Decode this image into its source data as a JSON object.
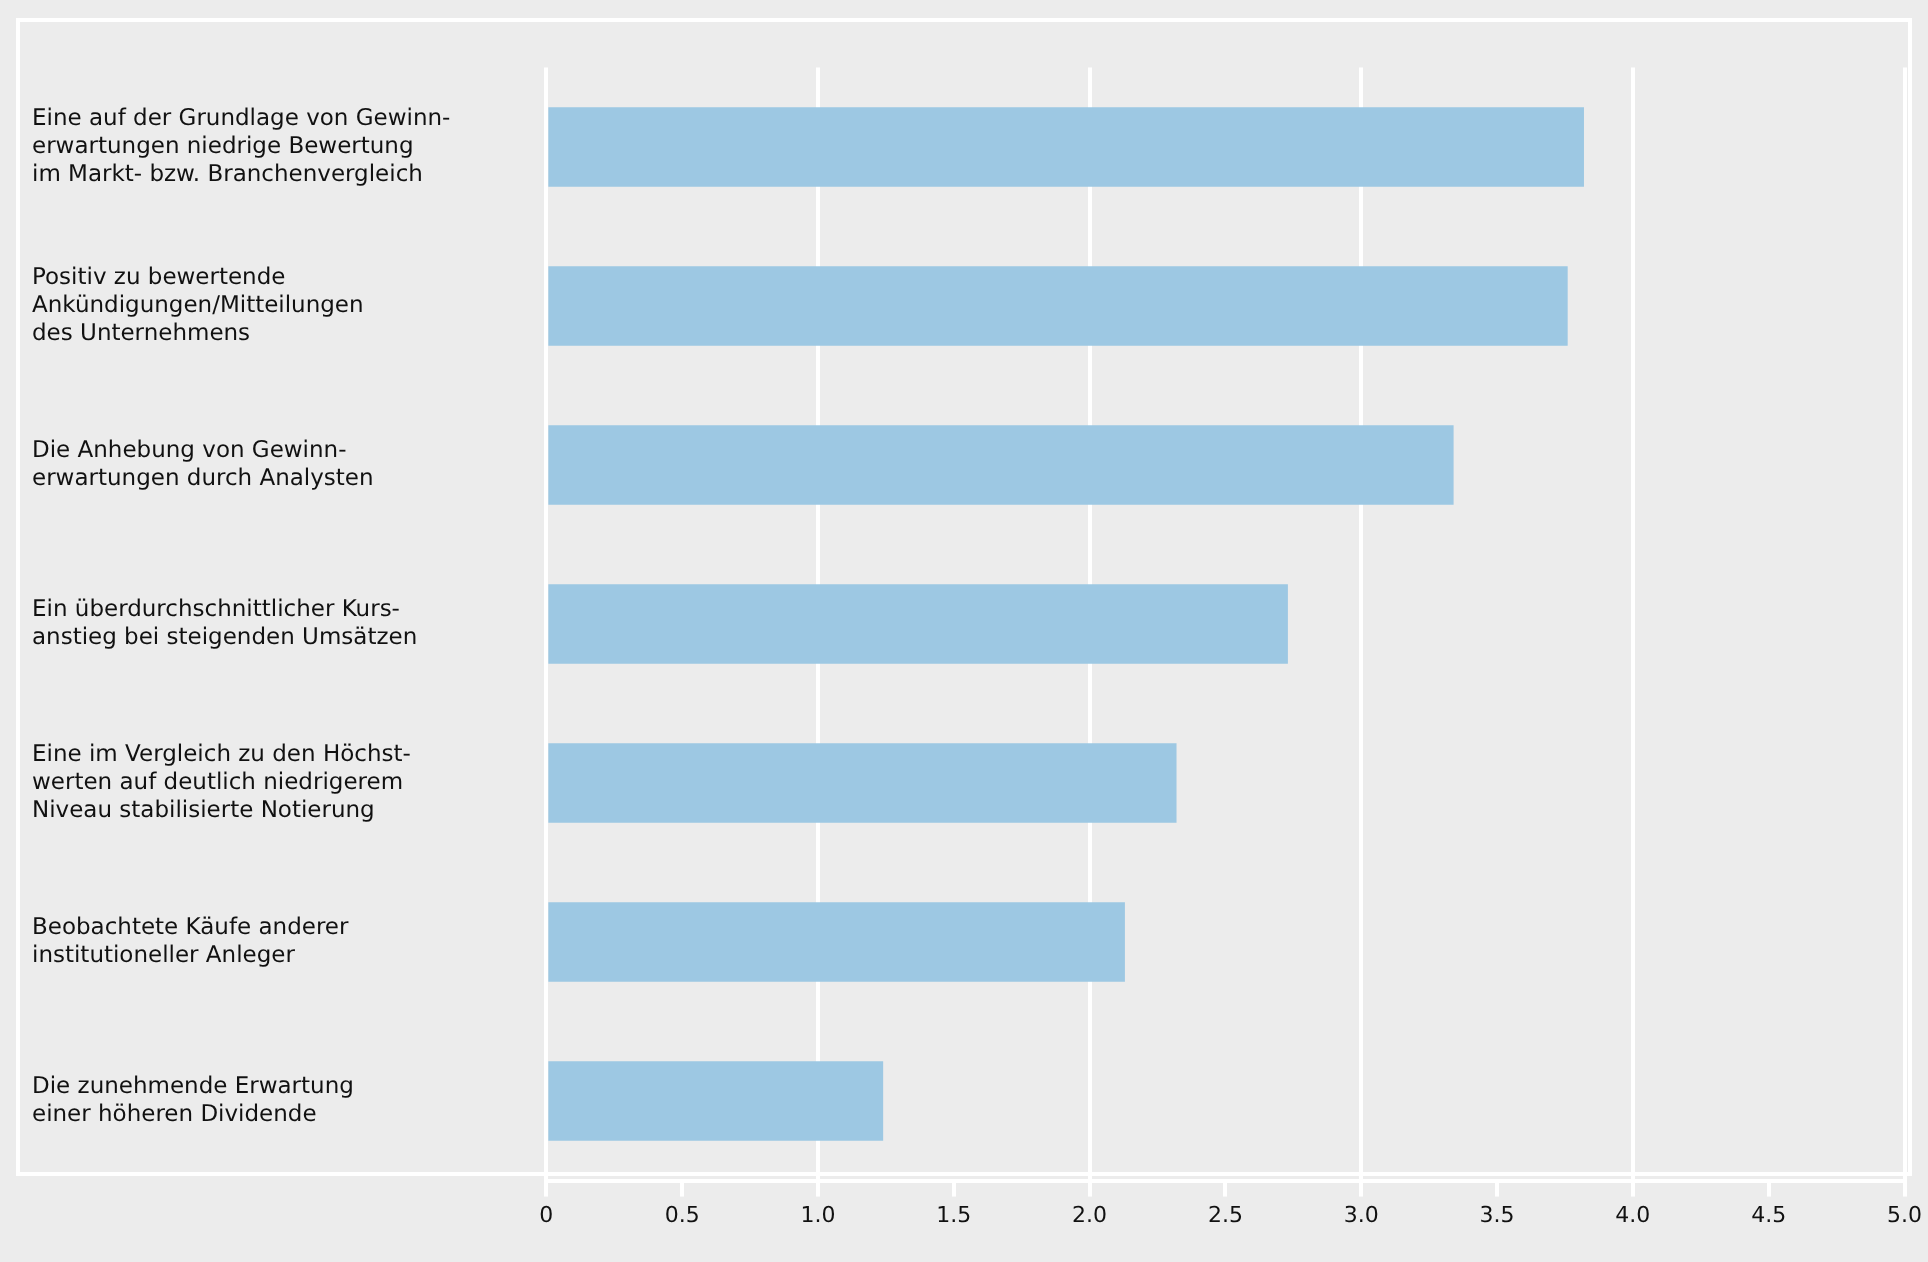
{
  "chart_data": {
    "type": "bar",
    "orientation": "horizontal",
    "categories": [
      "Eine auf der Grundlage von Gewinn-\nerwartungen niedrige Bewertung\nim Markt- bzw. Branchenvergleich",
      "Positiv zu bewertende\nAnkündigungen/Mitteilungen\ndes Unternehmens",
      "Die Anhebung von Gewinn-\nerwartungen durch Analysten",
      "Ein überdurchschnittlicher Kurs-\nanstieg bei steigenden Umsätzen",
      "Eine im Vergleich zu den Höchst-\nwerten auf deutlich niedrigerem\nNiveau stabilisierte Notierung",
      "Beobachtete Käufe anderer\ninstitutioneller Anleger",
      "Die zunehmende Erwartung\neiner höheren Dividende"
    ],
    "values": [
      3.82,
      3.76,
      3.34,
      2.73,
      2.32,
      2.13,
      1.24
    ],
    "color": "#9dc8e3",
    "xlim": [
      0,
      5
    ],
    "xticks": [
      0,
      0.5,
      {
        "value": 1,
        "label": "1.0"
      },
      1.5,
      {
        "value": 2,
        "label": "2.0"
      },
      2.5,
      {
        "value": 3,
        "label": "3.0"
      },
      3.5,
      {
        "value": 4,
        "label": "4.0"
      },
      4.5,
      {
        "value": 5,
        "label": "5.0"
      }
    ],
    "grid": "x",
    "legend": false
  }
}
